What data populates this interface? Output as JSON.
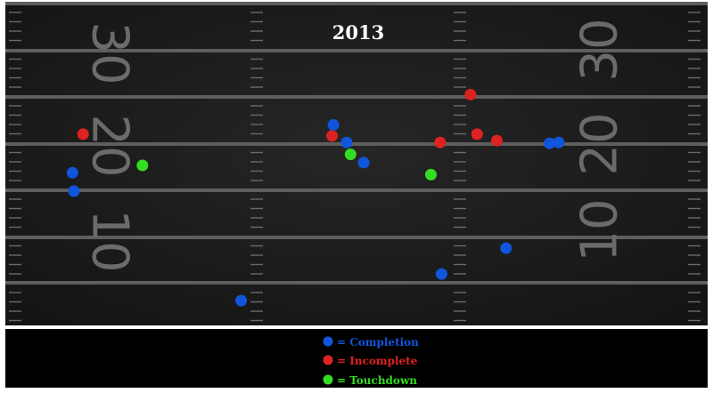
{
  "title": "2013",
  "field": {
    "yard_numbers_left": [
      "30",
      "20",
      "10"
    ],
    "yard_numbers_right": [
      "30",
      "20",
      "10"
    ],
    "background_color": "#1b1b1b",
    "line_color": "#5e5e5e",
    "number_color": "#6b6b6b"
  },
  "legend": {
    "items": [
      {
        "key": "completion",
        "label": "= Completion",
        "color": "#1155dd"
      },
      {
        "key": "incomplete",
        "label": "= Incomplete",
        "color": "#dd2222"
      },
      {
        "key": "touchdown",
        "label": "= Touchdown",
        "color": "#33dd22"
      }
    ]
  },
  "chart_data": {
    "type": "scatter",
    "title": "2013",
    "xlim": [
      0,
      53.3
    ],
    "ylim": [
      0,
      35
    ],
    "grid": true,
    "legend_position": "bottom-center",
    "series": [
      {
        "name": "Completion",
        "color": "#1155dd",
        "points": [
          {
            "x": 5.1,
            "y": 16.6
          },
          {
            "x": 5.2,
            "y": 14.6
          },
          {
            "x": 24.9,
            "y": 21.8
          },
          {
            "x": 25.9,
            "y": 19.9
          },
          {
            "x": 27.2,
            "y": 17.7
          },
          {
            "x": 41.3,
            "y": 19.8
          },
          {
            "x": 42.0,
            "y": 19.9
          },
          {
            "x": 38.0,
            "y": 8.4
          },
          {
            "x": 33.1,
            "y": 5.6
          },
          {
            "x": 17.9,
            "y": 2.7
          }
        ]
      },
      {
        "name": "Incomplete",
        "color": "#dd2222",
        "points": [
          {
            "x": 5.9,
            "y": 20.8
          },
          {
            "x": 24.8,
            "y": 20.6
          },
          {
            "x": 35.3,
            "y": 25.1
          },
          {
            "x": 33.0,
            "y": 19.9
          },
          {
            "x": 35.8,
            "y": 20.8
          },
          {
            "x": 37.3,
            "y": 20.1
          }
        ]
      },
      {
        "name": "Touchdown",
        "color": "#33dd22",
        "points": [
          {
            "x": 10.4,
            "y": 17.4
          },
          {
            "x": 26.2,
            "y": 18.6
          },
          {
            "x": 32.3,
            "y": 16.4
          }
        ]
      }
    ]
  }
}
